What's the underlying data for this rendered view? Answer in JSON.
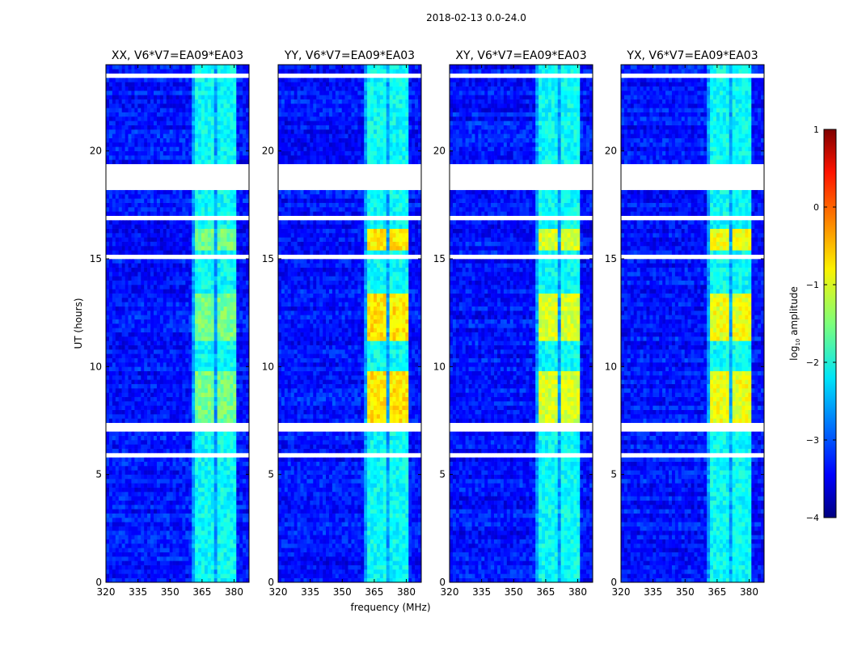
{
  "chart_data": {
    "type": "heatmap",
    "suptitle": "2018-02-13 0.0-24.0",
    "xlabel": "frequency (MHz)",
    "ylabel": "UT (hours)",
    "xlim": [
      320,
      387
    ],
    "ylim": [
      0,
      24
    ],
    "xticks": [
      320,
      335,
      350,
      365,
      380
    ],
    "yticks": [
      0,
      5,
      10,
      15,
      20
    ],
    "panels": [
      {
        "title": "XX, V6*V7=EA09*EA03",
        "strong_boost": 0.55
      },
      {
        "title": "YY, V6*V7=EA09*EA03",
        "strong_boost": 1.35
      },
      {
        "title": "XY, V6*V7=EA09*EA03",
        "strong_boost": 1.05
      },
      {
        "title": "YX, V6*V7=EA09*EA03",
        "strong_boost": 1.15
      }
    ],
    "background_level": -3.3,
    "rfi_subbands_mhz": [
      [
        362,
        366
      ],
      [
        367,
        371
      ],
      [
        372.5,
        376.5
      ],
      [
        377.5,
        381.5
      ]
    ],
    "rfi_level": -2.1,
    "strong_intervals_hours": [
      [
        7.5,
        9.8
      ],
      [
        11.3,
        13.5
      ],
      [
        15.5,
        16.5
      ]
    ],
    "flagged_intervals_hours": [
      [
        7.0,
        7.35
      ],
      [
        5.75,
        5.95
      ],
      [
        18.2,
        19.4
      ],
      [
        16.8,
        17.0
      ],
      [
        15.1,
        15.3
      ],
      [
        2.0,
        2.05
      ],
      [
        13.2,
        13.3
      ],
      [
        23.5,
        23.6
      ],
      [
        22.0,
        22.05
      ],
      [
        10.2,
        10.25
      ]
    ],
    "colorbar": {
      "label_main": "log",
      "label_sub": "10",
      "label_rest": " amplitude",
      "range": [
        -4,
        1
      ],
      "ticks": [
        "1",
        "0",
        "−1",
        "−2",
        "−3",
        "−4"
      ],
      "tick_values": [
        1,
        0,
        -1,
        -2,
        -3,
        -4
      ],
      "colormap": "jet"
    }
  }
}
